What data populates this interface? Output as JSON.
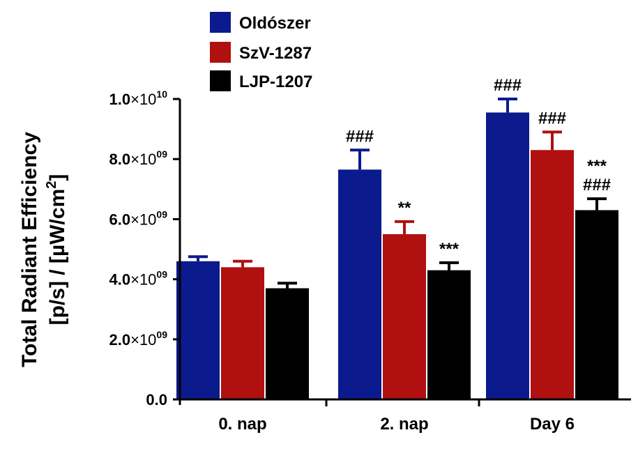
{
  "chart_data": {
    "type": "bar",
    "categories": [
      "0. nap",
      "2. nap",
      "Day 6"
    ],
    "series": [
      {
        "name": "Oldószer",
        "color": "#0b1a8c",
        "values": [
          4600000000.0,
          7650000000.0,
          9550000000.0
        ],
        "errors": [
          150000000.0,
          650000000.0,
          450000000.0
        ]
      },
      {
        "name": "SzV-1287",
        "color": "#b01010",
        "values": [
          4400000000.0,
          5500000000.0,
          8300000000.0
        ],
        "errors": [
          200000000.0,
          420000000.0,
          600000000.0
        ]
      },
      {
        "name": "LJP-1207",
        "color": "#000000",
        "values": [
          3700000000.0,
          4300000000.0,
          6300000000.0
        ],
        "errors": [
          170000000.0,
          250000000.0,
          380000000.0
        ]
      }
    ],
    "annotations": [
      {
        "series": 0,
        "category": 1,
        "lines": [
          "###"
        ]
      },
      {
        "series": 0,
        "category": 2,
        "lines": [
          "###"
        ]
      },
      {
        "series": 1,
        "category": 1,
        "lines": [
          "**"
        ]
      },
      {
        "series": 1,
        "category": 2,
        "lines": [
          "###"
        ]
      },
      {
        "series": 2,
        "category": 1,
        "lines": [
          "***"
        ]
      },
      {
        "series": 2,
        "category": 2,
        "lines": [
          "***",
          "###"
        ]
      }
    ],
    "ylabel_line1": "Total Radiant Efficiency",
    "ylabel_line2_prefix": "[p/s] / [µW/cm",
    "ylabel_line2_sup": "2",
    "ylabel_line2_suffix": "]",
    "ylim": [
      0,
      10000000000.0
    ],
    "yticks": [
      {
        "value": 0,
        "mantissa": "0.0",
        "times": "",
        "exponent": ""
      },
      {
        "value": 2000000000.0,
        "mantissa": "2.0",
        "times": "×10",
        "exponent": "09"
      },
      {
        "value": 4000000000.0,
        "mantissa": "4.0",
        "times": "×10",
        "exponent": "09"
      },
      {
        "value": 6000000000.0,
        "mantissa": "6.0",
        "times": "×10",
        "exponent": "09"
      },
      {
        "value": 8000000000.0,
        "mantissa": "8.0",
        "times": "×10",
        "exponent": "09"
      },
      {
        "value": 10000000000.0,
        "mantissa": "1.0",
        "times": "×10",
        "exponent": "10"
      }
    ],
    "legend_position": "top-left",
    "grid": false
  }
}
